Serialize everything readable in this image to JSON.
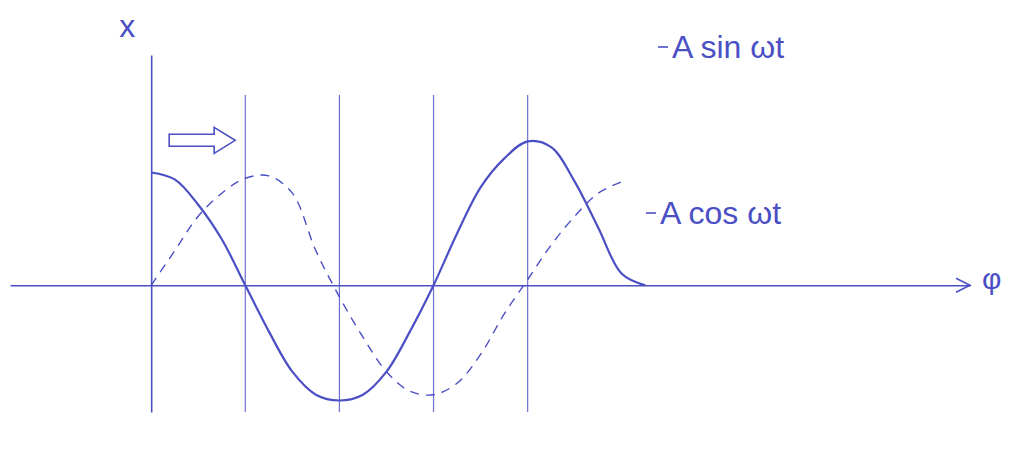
{
  "chart_data": {
    "type": "line",
    "x_label": "φ",
    "y_label": "x",
    "x": [
      0,
      0.25,
      0.5,
      0.75,
      1,
      1.25,
      1.5,
      1.75,
      2,
      2.25,
      2.5,
      2.75,
      3,
      3.25,
      3.5,
      3.75,
      4,
      4.25,
      4.5,
      4.75,
      5,
      5.25
    ],
    "series": [
      {
        "name": "A sin ωt",
        "color": "#4b4fc4",
        "line_style": "dashed",
        "values": [
          0,
          0.3,
          0.6,
          0.8,
          0.93,
          0.95,
          0.8,
          0.3,
          -0.1,
          -0.45,
          -0.75,
          -0.92,
          -0.95,
          -0.85,
          -0.6,
          -0.25,
          0.05,
          0.35,
          0.6,
          0.8,
          0.9,
          null
        ]
      },
      {
        "name": "A cos ωt",
        "color": "#4b4fc4",
        "line_style": "solid",
        "values": [
          0.98,
          0.92,
          0.7,
          0.4,
          0,
          -0.4,
          -0.75,
          -0.95,
          -1.0,
          -0.95,
          -0.75,
          -0.4,
          0,
          0.45,
          0.85,
          1.1,
          1.25,
          1.2,
          0.9,
          0.5,
          0.1,
          0
        ]
      }
    ],
    "xlim": [
      -1.5,
      8.7
    ],
    "ylim": [
      -1.1,
      2.0
    ],
    "xticks": [
      1,
      2,
      3,
      4
    ],
    "grid": true,
    "tick_labels": false
  }
}
